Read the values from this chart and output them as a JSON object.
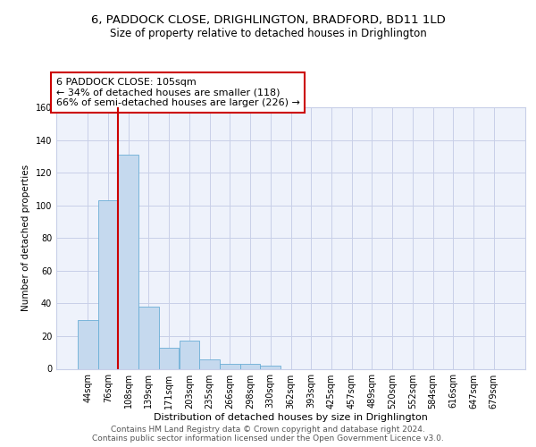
{
  "title_line1": "6, PADDOCK CLOSE, DRIGHLINGTON, BRADFORD, BD11 1LD",
  "title_line2": "Size of property relative to detached houses in Drighlington",
  "xlabel": "Distribution of detached houses by size in Drighlington",
  "ylabel": "Number of detached properties",
  "bar_labels": [
    "44sqm",
    "76sqm",
    "108sqm",
    "139sqm",
    "171sqm",
    "203sqm",
    "235sqm",
    "266sqm",
    "298sqm",
    "330sqm",
    "362sqm",
    "393sqm",
    "425sqm",
    "457sqm",
    "489sqm",
    "520sqm",
    "552sqm",
    "584sqm",
    "616sqm",
    "647sqm",
    "679sqm"
  ],
  "bar_values": [
    30,
    103,
    131,
    38,
    13,
    17,
    6,
    3,
    3,
    2,
    0,
    0,
    0,
    0,
    0,
    0,
    0,
    0,
    0,
    0,
    0
  ],
  "bar_color": "#c5d9ee",
  "bar_edge_color": "#6aaed6",
  "red_line_index": 2,
  "red_line_color": "#cc0000",
  "annotation_line1": "6 PADDOCK CLOSE: 105sqm",
  "annotation_line2": "← 34% of detached houses are smaller (118)",
  "annotation_line3": "66% of semi-detached houses are larger (226) →",
  "annotation_box_edge": "#cc0000",
  "ylim": [
    0,
    160
  ],
  "yticks": [
    0,
    20,
    40,
    60,
    80,
    100,
    120,
    140,
    160
  ],
  "background_color": "#eef2fb",
  "grid_color": "#c8cfe8",
  "footer_text": "Contains HM Land Registry data © Crown copyright and database right 2024.\nContains public sector information licensed under the Open Government Licence v3.0.",
  "title_fontsize": 9.5,
  "subtitle_fontsize": 8.5,
  "xlabel_fontsize": 8,
  "ylabel_fontsize": 7.5,
  "tick_fontsize": 7,
  "annotation_fontsize": 8,
  "footer_fontsize": 6.5
}
